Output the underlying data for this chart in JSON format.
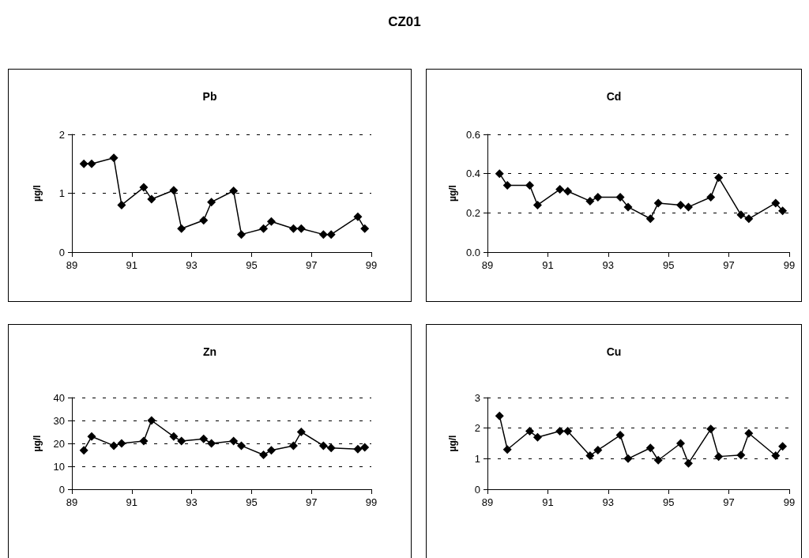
{
  "chart_data": [
    {
      "type": "line",
      "title": "Pb",
      "ylabel": "µg/l",
      "annotations": [
        "CZ01"
      ],
      "x": [
        89.4,
        89.66,
        90.4,
        90.66,
        91.4,
        91.66,
        92.4,
        92.66,
        93.4,
        93.66,
        94.4,
        94.66,
        95.4,
        95.66,
        96.4,
        96.66,
        97.4,
        97.66,
        98.55,
        98.78
      ],
      "series": [
        {
          "color": "#000000",
          "values": [
            1.5,
            1.5,
            1.6,
            0.8,
            1.1,
            0.9,
            1.05,
            0.4,
            0.54,
            0.85,
            1.04,
            0.3,
            0.4,
            0.52,
            0.4,
            0.4,
            0.3,
            0.3,
            0.6,
            0.4
          ]
        }
      ],
      "xlim": [
        89,
        99
      ],
      "xticks": [
        89,
        91,
        93,
        95,
        97,
        99
      ],
      "ylim": [
        0,
        2
      ],
      "yticks": [
        0,
        1,
        2
      ],
      "grid": "y",
      "marker": "diamond",
      "line_style": "solid"
    },
    {
      "type": "line",
      "title": "Cd",
      "ylabel": "µg/l",
      "x": [
        89.4,
        89.66,
        90.4,
        90.66,
        91.4,
        91.66,
        92.4,
        92.66,
        93.4,
        93.66,
        94.4,
        94.66,
        95.4,
        95.66,
        96.4,
        96.66,
        97.4,
        97.66,
        98.55,
        98.78
      ],
      "series": [
        {
          "color": "#000000",
          "values": [
            0.4,
            0.34,
            0.34,
            0.24,
            0.32,
            0.31,
            0.26,
            0.28,
            0.28,
            0.23,
            0.17,
            0.25,
            0.24,
            0.23,
            0.28,
            0.38,
            0.19,
            0.17,
            0.25,
            0.21
          ]
        }
      ],
      "xlim": [
        89,
        99
      ],
      "xticks": [
        89,
        91,
        93,
        95,
        97,
        99
      ],
      "ylim": [
        0,
        0.6
      ],
      "yticks": [
        {
          "value": 0,
          "label": "0.0"
        },
        {
          "value": 0.2,
          "label": "0.2"
        },
        {
          "value": 0.4,
          "label": "0.4"
        },
        {
          "value": 0.6,
          "label": "0.6"
        }
      ],
      "grid": "y",
      "marker": "diamond",
      "line_style": "solid"
    },
    {
      "type": "line",
      "title": "Zn",
      "ylabel": "µg/l",
      "x": [
        89.4,
        89.66,
        90.4,
        90.66,
        91.4,
        91.66,
        92.4,
        92.66,
        93.4,
        93.66,
        94.4,
        94.66,
        95.4,
        95.66,
        96.4,
        96.66,
        97.4,
        97.66,
        98.55,
        98.78
      ],
      "series": [
        {
          "color": "#000000",
          "values": [
            17,
            23,
            19,
            20,
            21,
            30,
            23,
            21,
            22,
            20,
            21,
            19,
            15,
            17,
            19,
            25,
            19,
            18,
            17.5,
            18.3
          ]
        }
      ],
      "xlim": [
        89,
        99
      ],
      "xticks": [
        89,
        91,
        93,
        95,
        97,
        99
      ],
      "ylim": [
        0,
        40
      ],
      "yticks": [
        0,
        10,
        20,
        30,
        40
      ],
      "grid": "y",
      "marker": "diamond",
      "line_style": "solid"
    },
    {
      "type": "line",
      "title": "Cu",
      "ylabel": "µg/l",
      "x": [
        89.4,
        89.66,
        90.4,
        90.66,
        91.4,
        91.66,
        92.4,
        92.66,
        93.4,
        93.66,
        94.4,
        94.66,
        95.4,
        95.66,
        96.4,
        96.66,
        97.4,
        97.66,
        98.55,
        98.78
      ],
      "series": [
        {
          "color": "#000000",
          "values": [
            2.4,
            1.3,
            1.9,
            1.7,
            1.9,
            1.9,
            1.1,
            1.28,
            1.77,
            1.0,
            1.35,
            0.95,
            1.5,
            0.85,
            1.97,
            1.07,
            1.12,
            1.83,
            1.1,
            1.4
          ]
        }
      ],
      "xlim": [
        89,
        99
      ],
      "xticks": [
        89,
        91,
        93,
        95,
        97,
        99
      ],
      "ylim": [
        0,
        3
      ],
      "yticks": [
        0,
        1,
        2,
        3
      ],
      "grid": "y",
      "marker": "diamond",
      "line_style": "solid"
    }
  ]
}
